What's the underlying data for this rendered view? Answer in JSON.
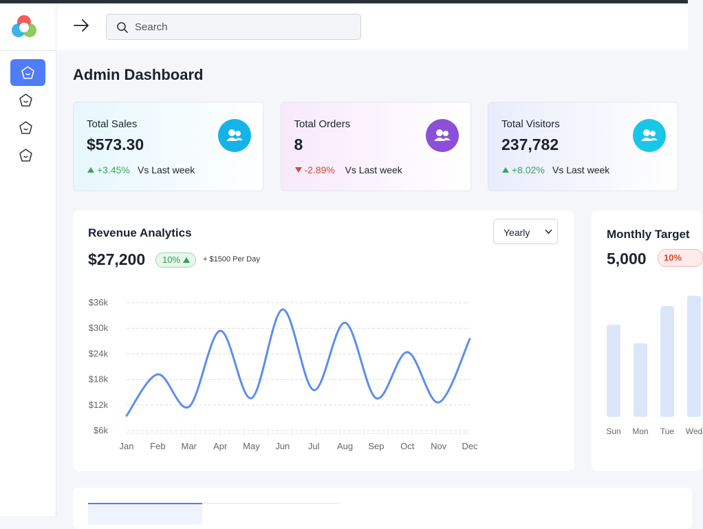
{
  "header": {
    "search_placeholder": "Search"
  },
  "page_title": "Admin Dashboard",
  "stats": [
    {
      "label": "Total Sales",
      "value": "$573.30",
      "change": "+3.45%",
      "comparison": "Vs Last week",
      "color": "#14b4e8"
    },
    {
      "label": "Total Orders",
      "value": "8",
      "change": "-2.89%",
      "comparison": "Vs Last week",
      "color": "#8b4fd8"
    },
    {
      "label": "Total Visitors",
      "value": "237,782",
      "change": "+8.02%",
      "comparison": "Vs Last week",
      "color": "#1ac6e8"
    }
  ],
  "revenue": {
    "title": "Revenue Analytics",
    "total": "$27,200",
    "badge": "10%",
    "note": "+ $1500 Per Day",
    "period": "Yearly",
    "chart_data": {
      "type": "line",
      "categories": [
        "Jan",
        "Feb",
        "Mar",
        "Apr",
        "May",
        "Jun",
        "Jul",
        "Aug",
        "Sep",
        "Oct",
        "Nov",
        "Dec"
      ],
      "values": [
        9500,
        19200,
        11600,
        29400,
        13600,
        34400,
        15500,
        31300,
        13600,
        24400,
        12600,
        27500
      ],
      "color": "#5b8def",
      "ylim": [
        6000,
        36000
      ],
      "yticks": [
        {
          "value": 6000,
          "label": "$6k"
        },
        {
          "value": 12000,
          "label": "$12k"
        },
        {
          "value": 18000,
          "label": "$18k"
        },
        {
          "value": 24000,
          "label": "$24k"
        },
        {
          "value": 30000,
          "label": "$30k"
        },
        {
          "value": 36000,
          "label": "$36k"
        }
      ],
      "grid": true
    }
  },
  "target": {
    "title": "Monthly Target",
    "value": "5,000",
    "badge": "10%",
    "chart_data": {
      "type": "bar",
      "categories": [
        "Sun",
        "Mon",
        "Tue",
        "Wed"
      ],
      "values": [
        134,
        107,
        161,
        176
      ],
      "color": "#dce6fb"
    }
  }
}
